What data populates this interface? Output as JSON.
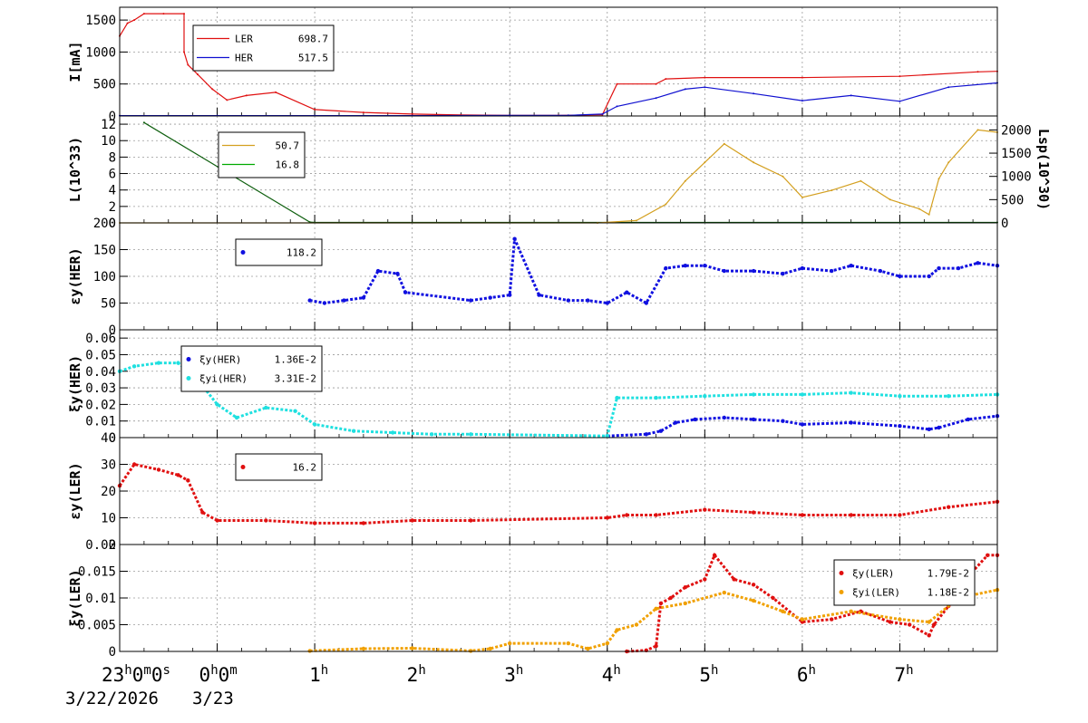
{
  "figure": {
    "x_axis": {
      "unit": "hours",
      "range": [
        -1,
        8
      ],
      "ticks": [
        {
          "value": -1,
          "label": "23",
          "sup": "h",
          "rest": "0",
          "sup2": "m",
          "rest2": "0",
          "sup3": "s"
        },
        {
          "value": 0,
          "label": "0",
          "sup": "h",
          "rest": "0",
          "sup2": "m"
        },
        {
          "value": 1,
          "label": "1",
          "sup": "h"
        },
        {
          "value": 2,
          "label": "2",
          "sup": "h"
        },
        {
          "value": 3,
          "label": "3",
          "sup": "h"
        },
        {
          "value": 4,
          "label": "4",
          "sup": "h"
        },
        {
          "value": 5,
          "label": "5",
          "sup": "h"
        },
        {
          "value": 6,
          "label": "6",
          "sup": "h"
        },
        {
          "value": 7,
          "label": "7",
          "sup": "h"
        }
      ],
      "dates": [
        "3/22/2026",
        "3/23"
      ]
    }
  },
  "chart_data": [
    {
      "type": "line",
      "ylabel": "I[mA]",
      "ylim": [
        0,
        1700
      ],
      "yticks": [
        0,
        500,
        1000,
        1500
      ],
      "grid": true,
      "legend": {
        "position": "top-left",
        "entries": [
          {
            "name": "LER",
            "value": "698.7",
            "color": "#e01010"
          },
          {
            "name": "HER",
            "value": "517.5",
            "color": "#1010d0"
          }
        ]
      },
      "series": [
        {
          "name": "LER",
          "color": "#e01010",
          "x": [
            -1.0,
            -0.92,
            -0.85,
            -0.75,
            -0.55,
            -0.34,
            -0.34,
            -0.3,
            -0.2,
            -0.05,
            0.1,
            0.3,
            0.6,
            1.0,
            1.5,
            2.0,
            2.5,
            3.0,
            3.5,
            3.95,
            4.1,
            4.5,
            4.6,
            5.0,
            6.0,
            7.0,
            7.8,
            8.0
          ],
          "y": [
            1250,
            1450,
            1500,
            1600,
            1600,
            1600,
            1000,
            800,
            650,
            420,
            250,
            320,
            370,
            100,
            55,
            30,
            15,
            10,
            8,
            20,
            500,
            500,
            580,
            600,
            600,
            620,
            690,
            699
          ]
        },
        {
          "name": "HER",
          "color": "#1010d0",
          "x": [
            -1.0,
            0.0,
            1.0,
            2.0,
            3.0,
            3.6,
            3.95,
            4.1,
            4.5,
            4.8,
            5.0,
            5.5,
            6.0,
            6.5,
            7.0,
            7.5,
            8.0
          ],
          "y": [
            5,
            5,
            5,
            5,
            10,
            10,
            30,
            150,
            280,
            420,
            450,
            350,
            240,
            320,
            230,
            450,
            517
          ]
        }
      ]
    },
    {
      "type": "line",
      "ylabel": "L(10^33)",
      "ylabel_right": "Lsp(10^30)",
      "ylim": [
        0,
        13
      ],
      "yticks": [
        0,
        2,
        4,
        6,
        8,
        10,
        12
      ],
      "ylim_right": [
        0,
        2300
      ],
      "yticks_right": [
        0,
        500,
        1000,
        1500,
        2000
      ],
      "grid": true,
      "legend": {
        "position": "top-left",
        "entries": [
          {
            "name": "",
            "value": "50.7",
            "color": "#d4a020"
          },
          {
            "name": "",
            "value": "16.8",
            "color": "#00aa00"
          }
        ]
      },
      "series": [
        {
          "name": "",
          "axis": "left",
          "color": "#106010",
          "x": [
            -0.75,
            0.95,
            1.0,
            8.0
          ],
          "y": [
            12.2,
            0.1,
            0.05,
            0.05
          ]
        },
        {
          "name": "",
          "axis": "right",
          "color": "#d4a020",
          "x": [
            -1,
            3.9,
            4.3,
            4.6,
            4.8,
            5.0,
            5.2,
            5.5,
            5.8,
            6.0,
            6.3,
            6.6,
            6.9,
            7.2,
            7.3,
            7.4,
            7.5,
            7.8,
            8.0
          ],
          "y": [
            0,
            0,
            50,
            400,
            900,
            1300,
            1700,
            1300,
            1000,
            550,
            700,
            900,
            500,
            300,
            180,
            950,
            1300,
            2000,
            1950
          ]
        }
      ]
    },
    {
      "type": "scatter",
      "ylabel": "εy(HER)",
      "ylim": [
        0,
        200
      ],
      "yticks": [
        0,
        50,
        100,
        150,
        200
      ],
      "grid": true,
      "legend": {
        "position": "top-left",
        "entries": [
          {
            "name": "",
            "value": "118.2",
            "color": "#1010e0"
          }
        ]
      },
      "series": [
        {
          "name": "",
          "color": "#1010e0",
          "x": [
            0.95,
            1.1,
            1.3,
            1.5,
            1.65,
            1.85,
            1.93,
            2.6,
            2.8,
            3.0,
            3.05,
            3.3,
            3.6,
            3.8,
            4.0,
            4.2,
            4.4,
            4.6,
            4.8,
            5.0,
            5.2,
            5.5,
            5.8,
            6.0,
            6.3,
            6.5,
            6.8,
            7.0,
            7.3,
            7.4,
            7.6,
            7.8,
            8.0
          ],
          "y": [
            55,
            50,
            55,
            60,
            110,
            105,
            70,
            55,
            60,
            65,
            170,
            65,
            55,
            55,
            50,
            70,
            50,
            115,
            120,
            120,
            110,
            110,
            105,
            115,
            110,
            120,
            110,
            100,
            100,
            115,
            115,
            125,
            120
          ]
        }
      ]
    },
    {
      "type": "scatter",
      "ylabel": "ξy(HER)",
      "ylim": [
        0,
        0.065
      ],
      "yticks": [
        0,
        0.01,
        0.02,
        0.03,
        0.04,
        0.05,
        0.06
      ],
      "grid": true,
      "legend": {
        "position": "top-left",
        "entries": [
          {
            "name": "ξy(HER)",
            "value": "1.36E-2",
            "color": "#1010e0"
          },
          {
            "name": "ξyi(HER)",
            "value": "3.31E-2",
            "color": "#20e0e0"
          }
        ]
      },
      "series": [
        {
          "name": "ξy(HER)",
          "color": "#1010e0",
          "x": [
            4.0,
            4.4,
            4.55,
            4.7,
            4.9,
            5.2,
            5.5,
            5.8,
            6.0,
            6.5,
            7.0,
            7.3,
            7.4,
            7.7,
            8.0
          ],
          "y": [
            0.001,
            0.002,
            0.004,
            0.009,
            0.011,
            0.012,
            0.011,
            0.01,
            0.008,
            0.009,
            0.007,
            0.005,
            0.006,
            0.011,
            0.013
          ]
        },
        {
          "name": "ξyi(HER)",
          "color": "#20e0e0",
          "x": [
            -1.0,
            -0.85,
            -0.6,
            -0.4,
            -0.2,
            0.0,
            0.2,
            0.5,
            0.8,
            1.0,
            1.4,
            1.8,
            2.2,
            2.6,
            4.0,
            4.1,
            4.5,
            5.0,
            5.5,
            6.0,
            6.5,
            7.0,
            7.5,
            8.0
          ],
          "y": [
            0.04,
            0.043,
            0.045,
            0.045,
            0.035,
            0.02,
            0.012,
            0.018,
            0.016,
            0.008,
            0.004,
            0.003,
            0.002,
            0.002,
            0.001,
            0.024,
            0.024,
            0.025,
            0.026,
            0.026,
            0.027,
            0.025,
            0.025,
            0.026
          ]
        }
      ]
    },
    {
      "type": "scatter",
      "ylabel": "εy(LER)",
      "ylim": [
        0,
        40
      ],
      "yticks": [
        0,
        10,
        20,
        30,
        40
      ],
      "grid": true,
      "legend": {
        "position": "top-left",
        "entries": [
          {
            "name": "",
            "value": "16.2",
            "color": "#e01010"
          }
        ]
      },
      "series": [
        {
          "name": "",
          "color": "#e01010",
          "x": [
            -1.0,
            -0.85,
            -0.6,
            -0.4,
            -0.3,
            -0.15,
            0.0,
            0.5,
            1.0,
            1.5,
            2.0,
            2.6,
            4.0,
            4.2,
            4.5,
            5.0,
            5.5,
            6.0,
            6.5,
            7.0,
            7.5,
            8.0
          ],
          "y": [
            22,
            30,
            28,
            26,
            24,
            12,
            9,
            9,
            8,
            8,
            9,
            9,
            10,
            11,
            11,
            13,
            12,
            11,
            11,
            11,
            14,
            16
          ]
        }
      ]
    },
    {
      "type": "scatter",
      "ylabel": "ξy(LER)",
      "ylim": [
        0,
        0.02
      ],
      "yticks": [
        0,
        0.005,
        0.01,
        0.015,
        0.02
      ],
      "grid": true,
      "legend": {
        "position": "top-right",
        "entries": [
          {
            "name": "ξy(LER)",
            "value": "1.79E-2",
            "color": "#e01010"
          },
          {
            "name": "ξyi(LER)",
            "value": "1.18E-2",
            "color": "#f0a000"
          }
        ]
      },
      "series": [
        {
          "name": "ξy(LER)",
          "color": "#e01010",
          "x": [
            4.2,
            4.4,
            4.5,
            4.55,
            4.65,
            4.8,
            5.0,
            5.1,
            5.3,
            5.5,
            5.7,
            6.0,
            6.3,
            6.6,
            6.9,
            7.1,
            7.3,
            7.35,
            7.5,
            7.7,
            7.9,
            8.0
          ],
          "y": [
            0,
            0.0002,
            0.001,
            0.009,
            0.01,
            0.012,
            0.0135,
            0.018,
            0.0135,
            0.0125,
            0.01,
            0.0055,
            0.006,
            0.0075,
            0.0055,
            0.005,
            0.003,
            0.005,
            0.0085,
            0.014,
            0.018,
            0.018
          ]
        },
        {
          "name": "ξyi(LER)",
          "color": "#f0a000",
          "x": [
            0.95,
            1.5,
            2.0,
            2.6,
            2.8,
            3.0,
            3.6,
            3.8,
            4.0,
            4.1,
            4.3,
            4.5,
            4.8,
            5.2,
            5.5,
            5.8,
            6.0,
            6.5,
            7.0,
            7.3,
            7.6,
            8.0
          ],
          "y": [
            0.0001,
            0.0005,
            0.0006,
            0.0001,
            0.0005,
            0.0015,
            0.0015,
            0.0005,
            0.0015,
            0.004,
            0.005,
            0.008,
            0.009,
            0.011,
            0.0095,
            0.0075,
            0.006,
            0.0075,
            0.006,
            0.0055,
            0.01,
            0.0115
          ]
        }
      ]
    }
  ]
}
